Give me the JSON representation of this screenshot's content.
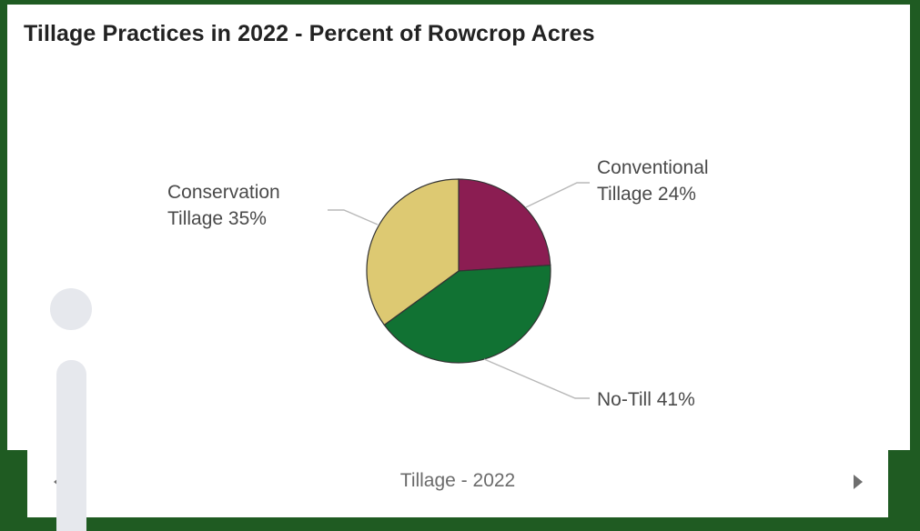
{
  "chart_data": {
    "type": "pie",
    "title": "Tillage Practices in 2022 - Percent of Rowcrop Acres",
    "slices": [
      {
        "label_lines": [
          "Conventional",
          "Tillage 24%"
        ],
        "value": 24,
        "color": "#8b1d52"
      },
      {
        "label_lines": [
          "No-Till 41%"
        ],
        "value": 41,
        "color": "#117233"
      },
      {
        "label_lines": [
          "Conservation",
          "Tillage 35%"
        ],
        "value": 35,
        "color": "#ddc972"
      }
    ],
    "legend": "none"
  },
  "navigator": {
    "label": "Tillage - 2022",
    "prev_icon": "chevron-left-icon",
    "next_icon": "chevron-right-icon"
  },
  "info_icon": "info-icon"
}
